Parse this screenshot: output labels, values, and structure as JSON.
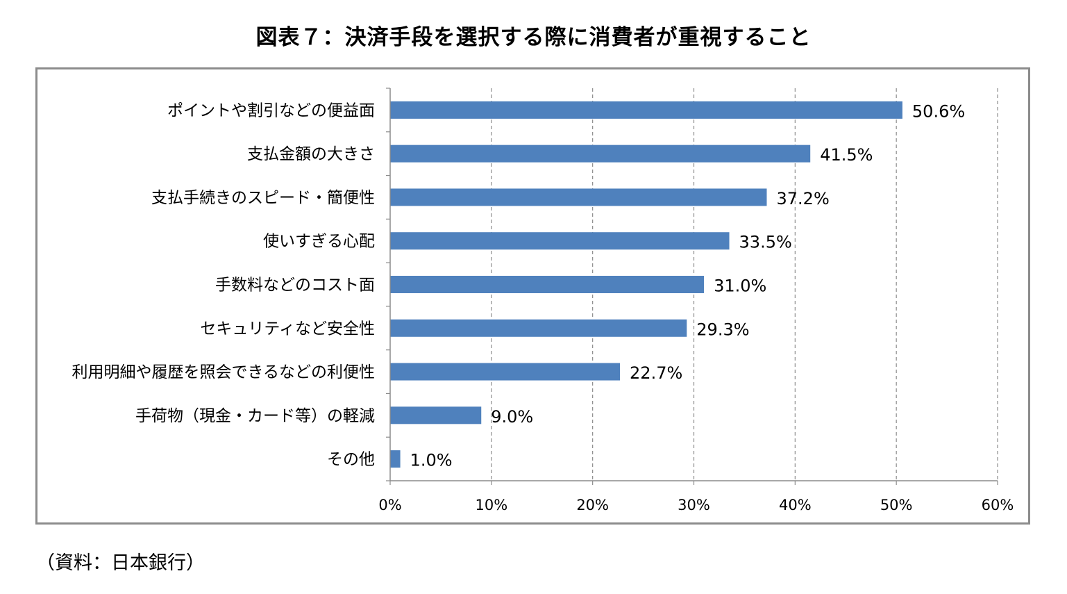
{
  "title": "図表７：決済手段を選択する際に消費者が重視すること",
  "source": "（資料：日本銀行）",
  "chart_data": {
    "type": "bar",
    "orientation": "horizontal",
    "categories": [
      "ポイントや割引などの便益面",
      "支払金額の大きさ",
      "支払手続きのスピード・簡便性",
      "使いすぎる心配",
      "手数料などのコスト面",
      "セキュリティなど安全性",
      "利用明細や履歴を照会できるなどの利便性",
      "手荷物（現金・カード等）の軽減",
      "その他"
    ],
    "values": [
      50.6,
      41.5,
      37.2,
      33.5,
      31.0,
      29.3,
      22.7,
      9.0,
      1.0
    ],
    "data_labels": [
      "50.6%",
      "41.5%",
      "37.2%",
      "33.5%",
      "31.0%",
      "29.3%",
      "22.7%",
      "9.0%",
      "1.0%"
    ],
    "xlim": [
      0,
      60
    ],
    "x_ticks": [
      0,
      10,
      20,
      30,
      40,
      50,
      60
    ],
    "x_tick_labels": [
      "0%",
      "10%",
      "20%",
      "30%",
      "40%",
      "50%",
      "60%"
    ],
    "grid": "vertical-dashed",
    "bar_color": "#4f81bd",
    "legend": "none"
  }
}
